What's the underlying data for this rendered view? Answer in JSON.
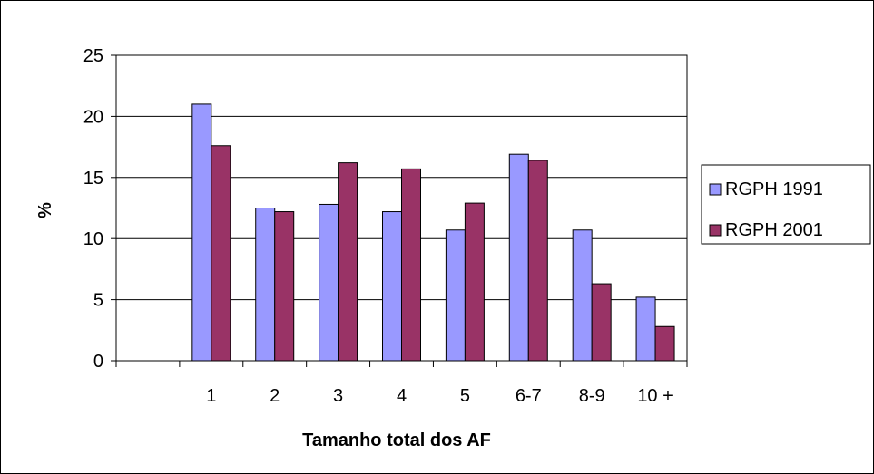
{
  "chart_data": {
    "type": "bar",
    "categories": [
      "",
      "1",
      "2",
      "3",
      "4",
      "5",
      "6-7",
      "8-9",
      "10 +"
    ],
    "series": [
      {
        "name": "RGPH 1991",
        "values": [
          null,
          21.0,
          12.5,
          12.8,
          12.2,
          10.7,
          16.9,
          10.7,
          5.2
        ]
      },
      {
        "name": "RGPH 2001",
        "values": [
          null,
          17.6,
          12.2,
          16.2,
          15.7,
          12.9,
          16.4,
          6.3,
          2.8
        ]
      }
    ],
    "xlabel": "Tamanho total dos AF",
    "ylabel": "%",
    "ylim": [
      0,
      25
    ],
    "yticks": [
      "0",
      "5",
      "10",
      "15",
      "20",
      "25"
    ],
    "grid": true,
    "legend_position": "right",
    "colors": {
      "RGPH 1991": "#9999FF",
      "RGPH 2001": "#993366",
      "plot_background": "#FFFFFF",
      "grid": "#000000",
      "border": "#000000"
    }
  }
}
